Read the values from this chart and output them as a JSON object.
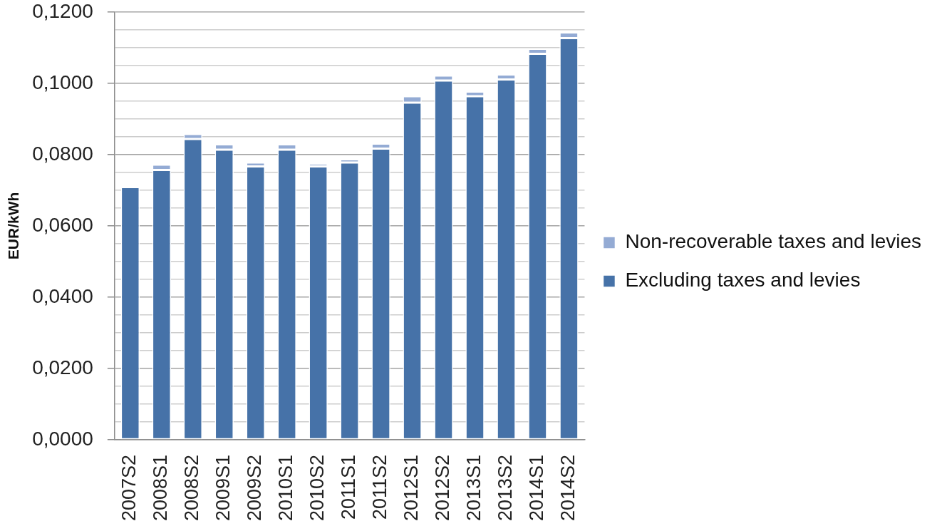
{
  "chart_data": {
    "type": "bar",
    "stacked": true,
    "categories": [
      "2007S2",
      "2008S1",
      "2008S2",
      "2009S1",
      "2009S2",
      "2010S1",
      "2010S2",
      "2011S1",
      "2011S2",
      "2012S1",
      "2012S2",
      "2013S1",
      "2013S2",
      "2014S1",
      "2014S2"
    ],
    "series": [
      {
        "name": "Excluding taxes and levies",
        "color": "#4672a8",
        "values": [
          0.0709,
          0.0757,
          0.0844,
          0.0814,
          0.0767,
          0.0814,
          0.0767,
          0.0778,
          0.0817,
          0.0946,
          0.1008,
          0.0964,
          0.1011,
          0.1083,
          0.1127
        ]
      },
      {
        "name": "Non-recoverable taxes and levies",
        "color": "#94abd4",
        "values": [
          0,
          0.0015,
          0.0014,
          0.0015,
          0.0011,
          0.0015,
          0.0008,
          0.0009,
          0.0014,
          0.0018,
          0.0014,
          0.0013,
          0.0014,
          0.0014,
          0.0016
        ]
      }
    ],
    "ylabel": "EUR/kWh",
    "ylim": [
      0,
      0.12
    ],
    "yticks": [
      {
        "value": 0,
        "label": "0,0000"
      },
      {
        "value": 0.005,
        "label": null
      },
      {
        "value": 0.01,
        "label": null
      },
      {
        "value": 0.015,
        "label": null
      },
      {
        "value": 0.02,
        "label": "0,0200"
      },
      {
        "value": 0.025,
        "label": null
      },
      {
        "value": 0.03,
        "label": null
      },
      {
        "value": 0.035,
        "label": null
      },
      {
        "value": 0.04,
        "label": "0,0400"
      },
      {
        "value": 0.045,
        "label": null
      },
      {
        "value": 0.05,
        "label": null
      },
      {
        "value": 0.055,
        "label": null
      },
      {
        "value": 0.06,
        "label": "0,0600"
      },
      {
        "value": 0.065,
        "label": null
      },
      {
        "value": 0.07,
        "label": null
      },
      {
        "value": 0.075,
        "label": null
      },
      {
        "value": 0.08,
        "label": "0,0800"
      },
      {
        "value": 0.085,
        "label": null
      },
      {
        "value": 0.09,
        "label": null
      },
      {
        "value": 0.095,
        "label": null
      },
      {
        "value": 0.1,
        "label": "0,1000"
      },
      {
        "value": 0.105,
        "label": null
      },
      {
        "value": 0.11,
        "label": null
      },
      {
        "value": 0.115,
        "label": null
      },
      {
        "value": 0.12,
        "label": "0,1200"
      }
    ],
    "grid": "y",
    "legend": "right"
  }
}
